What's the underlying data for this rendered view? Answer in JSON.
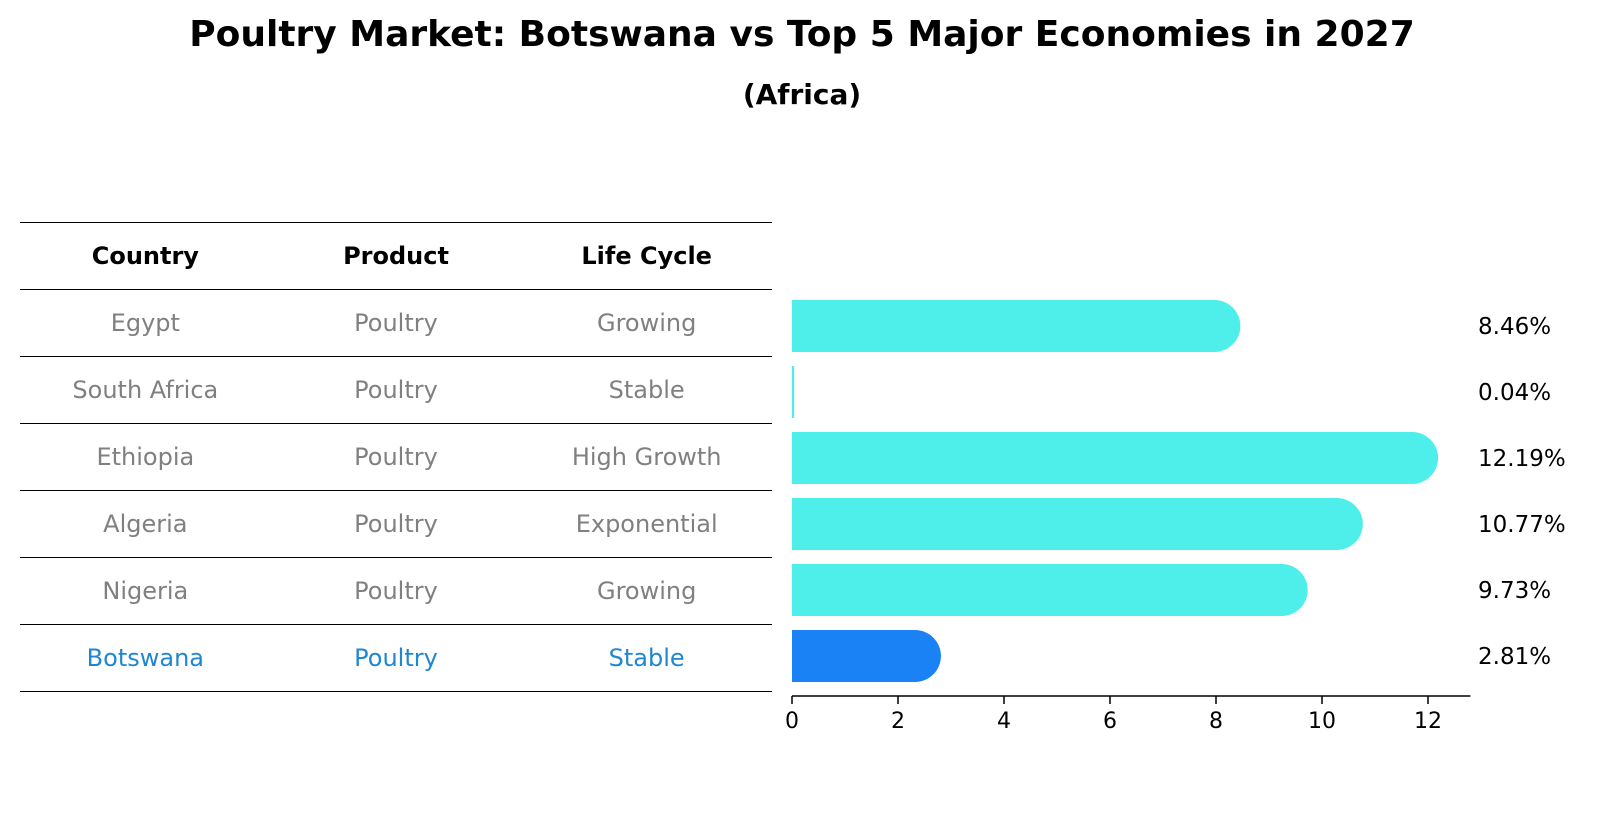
{
  "title": "Poultry Market: Botswana vs Top 5 Major Economies in 2027",
  "subtitle": "(Africa)",
  "table": {
    "headers": [
      "Country",
      "Product",
      "Life Cycle"
    ],
    "rows": [
      [
        "Egypt",
        "Poultry",
        "Growing"
      ],
      [
        "South Africa",
        "Poultry",
        "Stable"
      ],
      [
        "Ethiopia",
        "Poultry",
        "High Growth"
      ],
      [
        "Algeria",
        "Poultry",
        "Exponential"
      ],
      [
        "Nigeria",
        "Poultry",
        "Growing"
      ],
      [
        "Botswana",
        "Poultry",
        "Stable"
      ]
    ],
    "highlight_row": 5
  },
  "chart_data": {
    "type": "bar",
    "orientation": "horizontal",
    "categories": [
      "Egypt",
      "South Africa",
      "Ethiopia",
      "Algeria",
      "Nigeria",
      "Botswana"
    ],
    "values": [
      8.46,
      0.04,
      12.19,
      10.77,
      9.73,
      2.81
    ],
    "value_labels": [
      "8.46%",
      "0.04%",
      "12.19%",
      "10.77%",
      "9.73%",
      "2.81%"
    ],
    "xlim": [
      0,
      12.8
    ],
    "xticks": [
      0,
      2,
      4,
      6,
      8,
      10,
      12
    ],
    "colors": {
      "default": "#4eeeea",
      "highlight": "#1a82f5"
    },
    "highlight_index": 5
  }
}
